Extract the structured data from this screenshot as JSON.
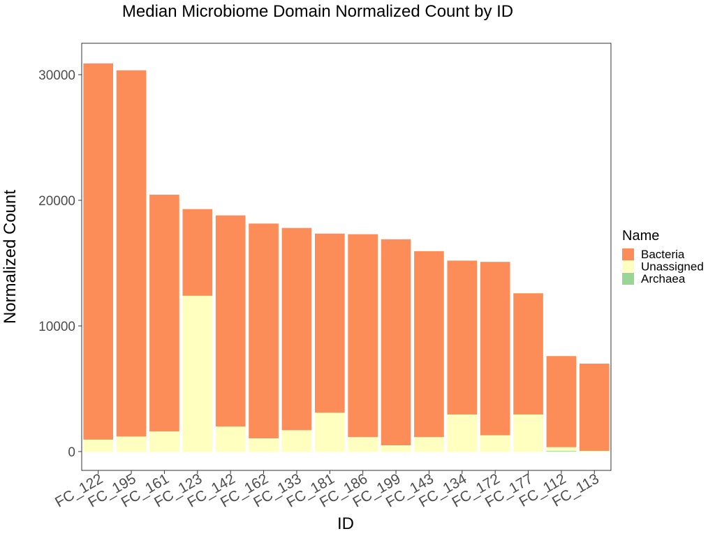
{
  "chart_data": {
    "type": "bar",
    "stacked": true,
    "title": "Median Microbiome Domain Normalized Count by ID",
    "xlabel": "ID",
    "ylabel": "Normalized Count",
    "ylim": [
      -1500,
      32500
    ],
    "yticks": [
      0,
      10000,
      20000,
      30000
    ],
    "grid": false,
    "legend": {
      "title": "Name",
      "placement": "right",
      "entries": [
        "Bacteria",
        "Unassigned",
        "Archaea"
      ]
    },
    "categories": [
      "FC_122",
      "FC_195",
      "FC_161",
      "FC_123",
      "FC_142",
      "FC_162",
      "FC_133",
      "FC_181",
      "FC_186",
      "FC_199",
      "FC_143",
      "FC_134",
      "FC_172",
      "FC_177",
      "FC_112",
      "FC_113"
    ],
    "series": [
      {
        "name": "Archaea",
        "color": "#99d594",
        "values": [
          0,
          0,
          0,
          0,
          0,
          0,
          0,
          0,
          0,
          0,
          0,
          0,
          0,
          0,
          50,
          0
        ]
      },
      {
        "name": "Unassigned",
        "color": "#ffffbf",
        "values": [
          950,
          1200,
          1600,
          12400,
          2000,
          1050,
          1700,
          3100,
          1150,
          500,
          1150,
          2950,
          1300,
          2950,
          300,
          50
        ]
      },
      {
        "name": "Bacteria",
        "color": "#fc8d59",
        "values": [
          29950,
          29150,
          18850,
          6900,
          16800,
          17100,
          16100,
          14250,
          16150,
          16400,
          14800,
          12250,
          13800,
          9650,
          7250,
          6950
        ]
      }
    ]
  }
}
